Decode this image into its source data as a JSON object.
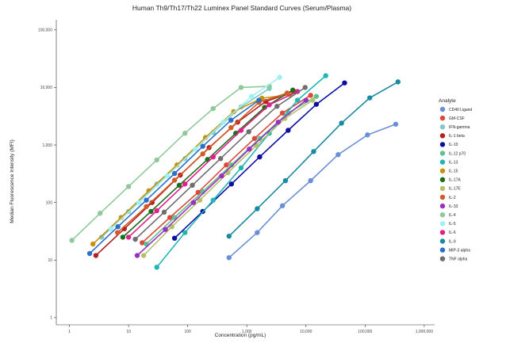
{
  "chart_data": {
    "type": "line",
    "title": "Human Th9/Th17/Th22 Luminex Panel Standard Curves (Serum/Plasma)",
    "xlabel": "Concentration (pg/mL)",
    "ylabel": "Median Fluorescence Intensity (MFI)",
    "xscale": "log",
    "yscale": "log",
    "xlim": [
      0.6,
      1500000
    ],
    "ylim": [
      0.75,
      150000
    ],
    "x_ticks": [
      1,
      10,
      100,
      1000,
      10000,
      100000,
      1000000
    ],
    "x_tick_labels": [
      "1",
      "10",
      "100",
      "1,000",
      "10,000",
      "100,000",
      "1,000,000"
    ],
    "y_ticks": [
      1,
      10,
      100,
      1000,
      10000,
      100000
    ],
    "y_tick_labels": [
      "1",
      "10",
      "100",
      "1,000",
      "10,000",
      "100,000"
    ],
    "grid": false,
    "legend_title": "Analyte",
    "legend_position": "right",
    "series": [
      {
        "name": "CD40 Ligand",
        "color": "#6b8fd6",
        "x": [
          500,
          1500,
          4000,
          12000,
          35000,
          110000,
          330000
        ],
        "y": [
          11,
          30,
          88,
          240,
          680,
          1500,
          2300
        ]
      },
      {
        "name": "GM-CSF",
        "color": "#d94a3a",
        "x": [
          17,
          50,
          150,
          450,
          1350,
          4000,
          12000
        ],
        "y": [
          20,
          55,
          150,
          450,
          1300,
          3600,
          7300
        ]
      },
      {
        "name": "IFN-gamma",
        "color": "#7fcac3",
        "x": [
          3.5,
          10,
          30,
          90,
          270,
          800,
          2400
        ],
        "y": [
          25,
          70,
          210,
          580,
          1650,
          4600,
          9600
        ]
      },
      {
        "name": "IL-1 beta",
        "color": "#b22222",
        "x": [
          2.8,
          8.5,
          25,
          75,
          230,
          700,
          2100,
          6300
        ],
        "y": [
          12,
          35,
          100,
          300,
          900,
          2500,
          5700,
          8500
        ]
      },
      {
        "name": "IL-10",
        "color": "#0a0fa0",
        "x": [
          60,
          180,
          550,
          1650,
          5000,
          15000,
          45000
        ],
        "y": [
          24,
          70,
          210,
          620,
          1800,
          5100,
          12000
        ]
      },
      {
        "name": "IL-12 p70",
        "color": "#5fbf8f",
        "x": [
          20,
          60,
          180,
          550,
          1650,
          5000,
          15000
        ],
        "y": [
          19,
          55,
          155,
          450,
          1300,
          3600,
          7000
        ]
      },
      {
        "name": "IL-13",
        "color": "#22b5b5",
        "x": [
          30,
          90,
          270,
          800,
          2400,
          7200,
          21600
        ],
        "y": [
          7.5,
          30,
          110,
          400,
          1600,
          6000,
          16000
        ]
      },
      {
        "name": "IL-15",
        "color": "#c8920f",
        "x": [
          2.5,
          7.5,
          22,
          66,
          200,
          600,
          1800,
          5400
        ],
        "y": [
          19,
          55,
          160,
          450,
          1350,
          3800,
          6500,
          7500
        ]
      },
      {
        "name": "IL-17A",
        "color": "#1b6e1b",
        "x": [
          8,
          24,
          72,
          216,
          650,
          2000,
          6000
        ],
        "y": [
          25,
          70,
          200,
          560,
          1600,
          4500,
          9000
        ]
      },
      {
        "name": "IL-17E",
        "color": "#b3c26a",
        "x": [
          18,
          54,
          160,
          480,
          1450,
          4400,
          13000
        ],
        "y": [
          12,
          38,
          110,
          330,
          980,
          2900,
          6000
        ]
      },
      {
        "name": "IL-2",
        "color": "#d35b28",
        "x": [
          6.5,
          20,
          60,
          180,
          540,
          1600,
          4800
        ],
        "y": [
          30,
          85,
          245,
          700,
          2000,
          5500,
          8000
        ]
      },
      {
        "name": "IL-33",
        "color": "#9a30c0",
        "x": [
          14,
          42,
          125,
          375,
          1100,
          3400,
          10000
        ],
        "y": [
          12,
          34,
          100,
          290,
          850,
          2500,
          6000
        ]
      },
      {
        "name": "IL-4",
        "color": "#8fc99a",
        "x": [
          1.1,
          3.3,
          10,
          30,
          90,
          270,
          800,
          2400
        ],
        "y": [
          22,
          65,
          190,
          550,
          1600,
          4300,
          10000,
          10500
        ]
      },
      {
        "name": "IL-5",
        "color": "#9ff0f0",
        "x": [
          5,
          15,
          45,
          135,
          400,
          1200,
          3600
        ],
        "y": [
          35,
          100,
          290,
          850,
          2500,
          7000,
          15000
        ]
      },
      {
        "name": "IL-6",
        "color": "#e0208a",
        "x": [
          10,
          30,
          90,
          270,
          800,
          2400,
          7200
        ],
        "y": [
          25,
          72,
          210,
          620,
          1800,
          5000,
          8500
        ]
      },
      {
        "name": "IL-9",
        "color": "#1a8aa0",
        "x": [
          500,
          1500,
          4500,
          13500,
          40000,
          120000,
          360000
        ],
        "y": [
          26,
          78,
          240,
          770,
          2400,
          6600,
          12500
        ]
      },
      {
        "name": "MIP-3 alpha",
        "color": "#2b6fc7",
        "x": [
          2.2,
          6.6,
          20,
          60,
          180,
          540,
          1600
        ],
        "y": [
          13,
          38,
          110,
          320,
          950,
          2700,
          6000
        ]
      },
      {
        "name": "TNF alpha",
        "color": "#6e6e6e",
        "x": [
          13,
          40,
          120,
          360,
          1080,
          3240,
          9700
        ],
        "y": [
          23,
          68,
          200,
          580,
          1700,
          4700,
          10000
        ]
      }
    ]
  }
}
